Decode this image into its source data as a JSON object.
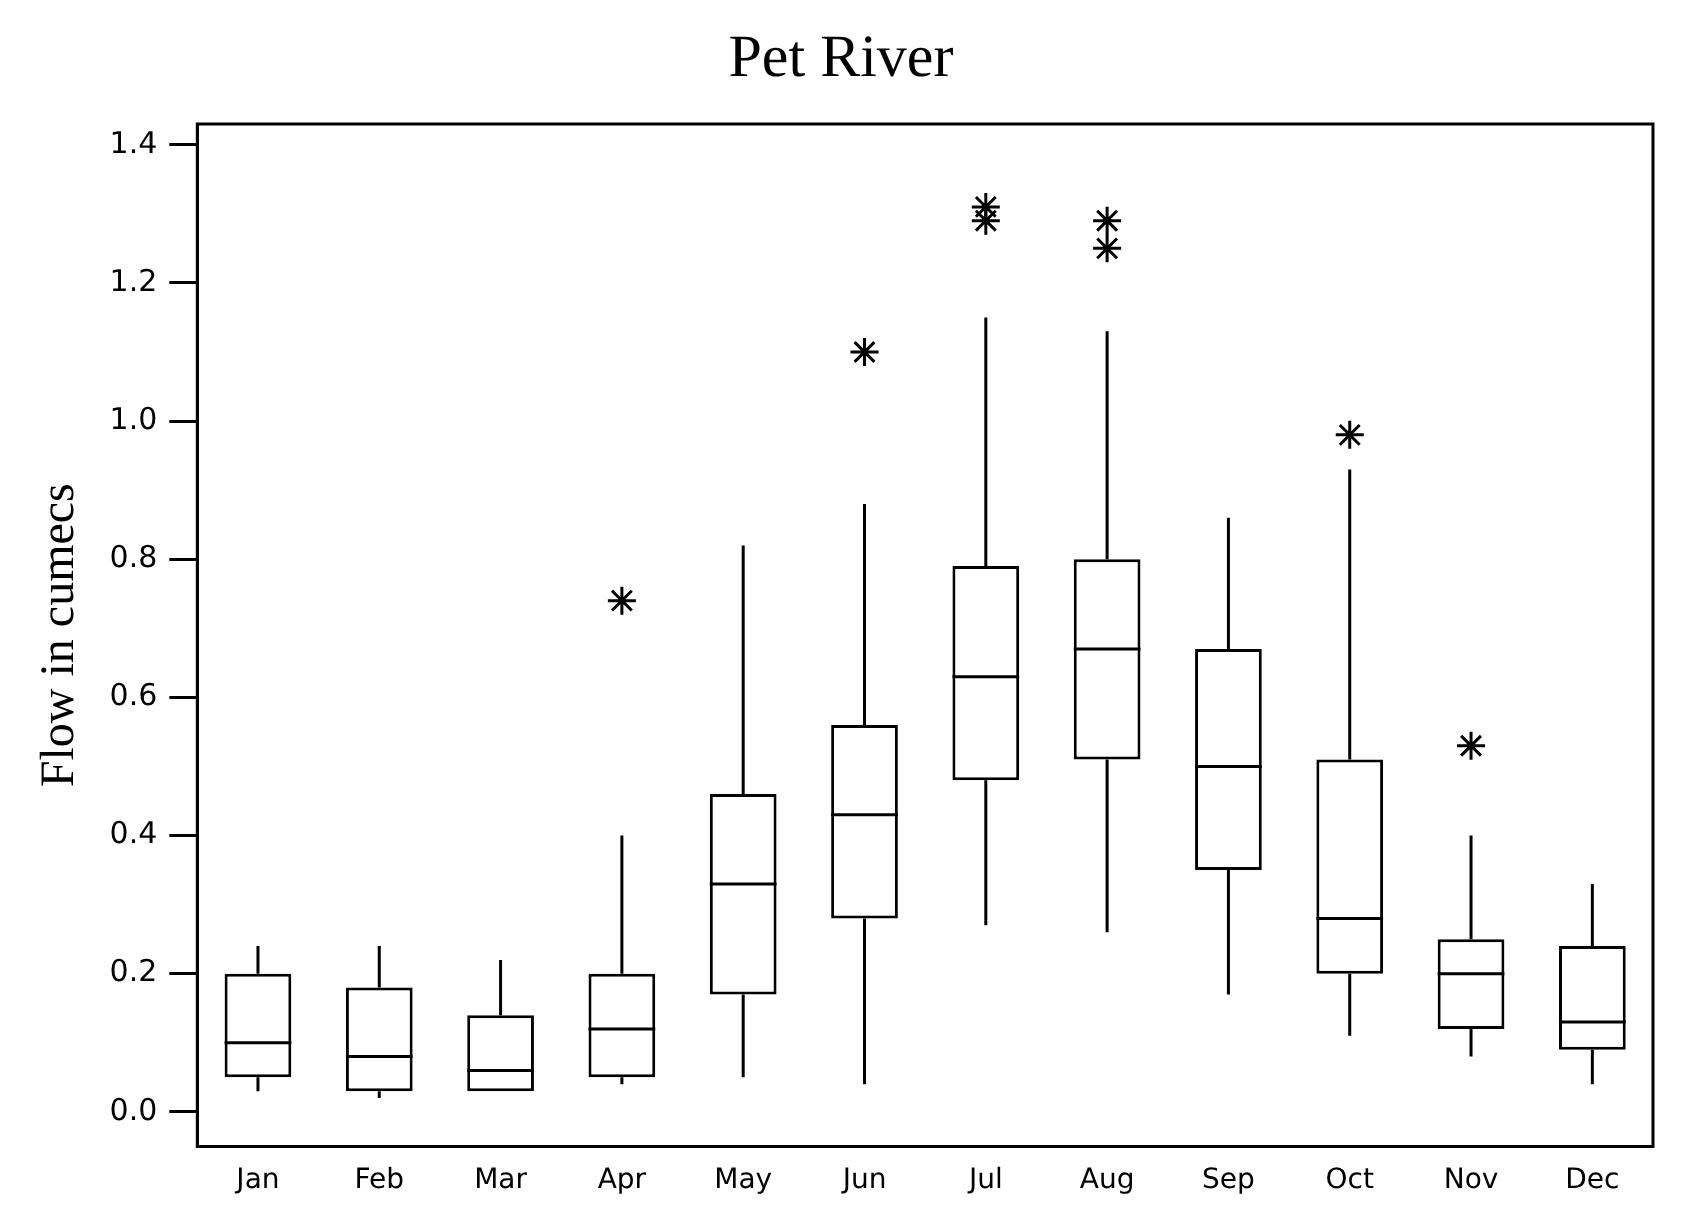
{
  "chart_data": {
    "type": "box",
    "title": "Pet River",
    "ylabel": "Flow in cumecs",
    "categories": [
      "Jan",
      "Feb",
      "Mar",
      "Apr",
      "May",
      "Jun",
      "Jul",
      "Aug",
      "Sep",
      "Oct",
      "Nov",
      "Dec"
    ],
    "boxes": [
      {
        "low": 0.03,
        "q1": 0.05,
        "median": 0.1,
        "q3": 0.2,
        "high": 0.24
      },
      {
        "low": 0.02,
        "q1": 0.03,
        "median": 0.08,
        "q3": 0.18,
        "high": 0.24
      },
      {
        "low": 0.03,
        "q1": 0.03,
        "median": 0.06,
        "q3": 0.14,
        "high": 0.22
      },
      {
        "low": 0.04,
        "q1": 0.05,
        "median": 0.12,
        "q3": 0.2,
        "high": 0.4,
        "outliers": [
          0.74
        ]
      },
      {
        "low": 0.05,
        "q1": 0.17,
        "median": 0.33,
        "q3": 0.46,
        "high": 0.82
      },
      {
        "low": 0.04,
        "q1": 0.28,
        "median": 0.43,
        "q3": 0.56,
        "high": 0.88,
        "outliers": [
          1.1
        ]
      },
      {
        "low": 0.27,
        "q1": 0.48,
        "median": 0.63,
        "q3": 0.79,
        "high": 1.15,
        "outliers": [
          1.31,
          1.29
        ]
      },
      {
        "low": 0.26,
        "q1": 0.51,
        "median": 0.67,
        "q3": 0.8,
        "high": 1.13,
        "outliers": [
          1.29,
          1.25
        ]
      },
      {
        "low": 0.17,
        "q1": 0.35,
        "median": 0.5,
        "q3": 0.67,
        "high": 0.86
      },
      {
        "low": 0.11,
        "q1": 0.2,
        "median": 0.28,
        "q3": 0.51,
        "high": 0.93,
        "outliers": [
          0.98
        ]
      },
      {
        "low": 0.08,
        "q1": 0.12,
        "median": 0.2,
        "q3": 0.25,
        "high": 0.4,
        "outliers": [
          0.53
        ]
      },
      {
        "low": 0.04,
        "q1": 0.09,
        "median": 0.13,
        "q3": 0.24,
        "high": 0.33
      }
    ],
    "color": "#000000",
    "marker": "star",
    "grid": false,
    "legend": false,
    "ylim": [
      -0.05,
      1.43
    ],
    "yticks": [
      {
        "value": 0,
        "label": "0.0"
      },
      {
        "value": 0.2,
        "label": "0.2"
      },
      {
        "value": 0.4,
        "label": "0.4"
      },
      {
        "value": 0.6,
        "label": "0.6"
      },
      {
        "value": 0.8,
        "label": "0.8"
      },
      {
        "value": 1,
        "label": "1.0"
      },
      {
        "value": 1.2,
        "label": "1.2"
      },
      {
        "value": 1.4,
        "label": "1.4"
      }
    ]
  }
}
